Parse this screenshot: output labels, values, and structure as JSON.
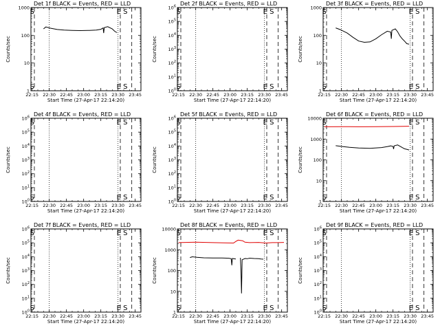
{
  "x_ticks": [
    "22:15",
    "22:30",
    "22:45",
    "23:00",
    "23:15",
    "23:30",
    "23:45"
  ],
  "x_tick_values": [
    0,
    15,
    30,
    45,
    60,
    75,
    90
  ],
  "xlabel": "Start Time (27-Apr-17 22:14:20)",
  "ylabel": "Counts/sec",
  "legend_markers": {
    "start": "S",
    "end": "E",
    "end_start": "E S"
  },
  "series_colors": {
    "Events": "#000000",
    "LLD": "#e00000"
  },
  "chart_data": [
    {
      "type": "line",
      "title": "Det 1f BLACK = Events, RED = LLD",
      "xlim": [
        -1,
        95
      ],
      "ylog": true,
      "ylim": [
        1,
        1000
      ],
      "y_ticks": [
        {
          "v": 1,
          "l": "1"
        },
        {
          "v": 10,
          "l": "10"
        },
        {
          "v": 100,
          "l": "100"
        },
        {
          "v": 1000,
          "l": "1000"
        }
      ],
      "markers": {
        "left": "S",
        "right": "E S"
      },
      "vlines": {
        "dotted": [
          15,
          75
        ],
        "dashed": [
          2,
          77,
          87
        ]
      },
      "series": [
        {
          "name": "Events",
          "color": "#000000",
          "segments": [
            [
              [
                10,
                170
              ],
              [
                12,
                200
              ],
              [
                16,
                180
              ],
              [
                22,
                162
              ],
              [
                28,
                155
              ],
              [
                35,
                150
              ],
              [
                42,
                148
              ],
              [
                50,
                150
              ],
              [
                56,
                155
              ],
              [
                60,
                165
              ],
              [
                62,
                185
              ],
              [
                62.5,
                120
              ],
              [
                63,
                190
              ],
              [
                66,
                205
              ],
              [
                70,
                170
              ],
              [
                72,
                140
              ],
              [
                74,
                125
              ]
            ]
          ]
        }
      ]
    },
    {
      "type": "line",
      "title": "Det 2f BLACK = Events, RED = LLD",
      "xlim": [
        -1,
        95
      ],
      "ylog": true,
      "ylim": [
        1,
        1000000
      ],
      "y_ticks": [
        {
          "v": 1,
          "l": "10^0"
        },
        {
          "v": 10,
          "l": "10^1"
        },
        {
          "v": 100,
          "l": "10^2"
        },
        {
          "v": 1000,
          "l": "10^3"
        },
        {
          "v": 10000,
          "l": "10^4"
        },
        {
          "v": 100000,
          "l": "10^5"
        },
        {
          "v": 1000000,
          "l": "10^6"
        }
      ],
      "markers": {
        "left": "S",
        "right": "E S"
      },
      "vlines": {
        "dotted": [
          15,
          75
        ],
        "dashed": [
          2,
          77,
          87
        ]
      },
      "series": []
    },
    {
      "type": "line",
      "title": "Det 3f BLACK = Events, RED = LLD",
      "xlim": [
        -1,
        95
      ],
      "ylog": true,
      "ylim": [
        1,
        1000
      ],
      "y_ticks": [
        {
          "v": 1,
          "l": "1"
        },
        {
          "v": 10,
          "l": "10"
        },
        {
          "v": 100,
          "l": "100"
        },
        {
          "v": 1000,
          "l": "1000"
        }
      ],
      "markers": {
        "left": "S",
        "right": "E S"
      },
      "vlines": {
        "dotted": [
          15,
          75
        ],
        "dashed": [
          2,
          77,
          87
        ]
      },
      "series": [
        {
          "name": "Events",
          "color": "#000000",
          "segments": [
            [
              [
                10,
                185
              ],
              [
                14,
                160
              ],
              [
                20,
                120
              ],
              [
                25,
                85
              ],
              [
                30,
                62
              ],
              [
                35,
                56
              ],
              [
                40,
                58
              ],
              [
                45,
                75
              ],
              [
                50,
                105
              ],
              [
                55,
                140
              ],
              [
                58,
                130
              ],
              [
                58.5,
                75
              ],
              [
                59,
                150
              ],
              [
                62,
                170
              ],
              [
                64,
                135
              ],
              [
                66,
                95
              ],
              [
                68,
                75
              ],
              [
                70,
                62
              ],
              [
                72,
                50
              ],
              [
                74,
                48
              ]
            ]
          ]
        }
      ]
    },
    {
      "type": "line",
      "title": "Det 4f BLACK = Events, RED = LLD",
      "xlim": [
        -1,
        95
      ],
      "ylog": true,
      "ylim": [
        1,
        1000000
      ],
      "y_ticks": [
        {
          "v": 1,
          "l": "10^0"
        },
        {
          "v": 10,
          "l": "10^1"
        },
        {
          "v": 100,
          "l": "10^2"
        },
        {
          "v": 1000,
          "l": "10^3"
        },
        {
          "v": 10000,
          "l": "10^4"
        },
        {
          "v": 100000,
          "l": "10^5"
        },
        {
          "v": 1000000,
          "l": "10^6"
        }
      ],
      "markers": {
        "left": "S",
        "right": "E S"
      },
      "vlines": {
        "dotted": [
          15,
          75
        ],
        "dashed": [
          2,
          77,
          87
        ]
      },
      "series": []
    },
    {
      "type": "line",
      "title": "Det 5f BLACK = Events, RED = LLD",
      "xlim": [
        -1,
        95
      ],
      "ylog": true,
      "ylim": [
        1,
        1000000
      ],
      "y_ticks": [
        {
          "v": 1,
          "l": "10^0"
        },
        {
          "v": 10,
          "l": "10^1"
        },
        {
          "v": 100,
          "l": "10^2"
        },
        {
          "v": 1000,
          "l": "10^3"
        },
        {
          "v": 10000,
          "l": "10^4"
        },
        {
          "v": 100000,
          "l": "10^5"
        },
        {
          "v": 1000000,
          "l": "10^6"
        }
      ],
      "markers": {
        "left": "S",
        "right": "E S"
      },
      "vlines": {
        "dotted": [
          15,
          75
        ],
        "dashed": [
          2,
          77,
          87
        ]
      },
      "series": []
    },
    {
      "type": "line",
      "title": "Det 6f BLACK = Events, RED = LLD",
      "xlim": [
        -1,
        95
      ],
      "ylog": true,
      "ylim": [
        1,
        10000
      ],
      "y_ticks": [
        {
          "v": 1,
          "l": "1"
        },
        {
          "v": 10,
          "l": "10"
        },
        {
          "v": 100,
          "l": "100"
        },
        {
          "v": 1000,
          "l": "1000"
        },
        {
          "v": 10000,
          "l": "10000"
        }
      ],
      "markers": {
        "left": "S",
        "right": "E S"
      },
      "vlines": {
        "dotted": [
          15,
          75
        ],
        "dashed": [
          2,
          77,
          87
        ]
      },
      "series": [
        {
          "name": "LLD",
          "color": "#e00000",
          "segments": [
            [
              [
                0,
                3900
              ],
              [
                15,
                3950
              ],
              [
                30,
                3900
              ],
              [
                45,
                3950
              ],
              [
                60,
                4000
              ],
              [
                70,
                4100
              ],
              [
                74,
                4150
              ]
            ]
          ]
        },
        {
          "name": "Events",
          "color": "#000000",
          "segments": [
            [
              [
                10,
                480
              ],
              [
                15,
                440
              ],
              [
                22,
                400
              ],
              [
                30,
                370
              ],
              [
                40,
                360
              ],
              [
                50,
                390
              ],
              [
                55,
                430
              ],
              [
                58,
                470
              ],
              [
                60,
                440
              ],
              [
                60.5,
                330
              ],
              [
                61,
                470
              ],
              [
                64,
                520
              ],
              [
                67,
                420
              ],
              [
                70,
                340
              ],
              [
                73,
                310
              ],
              [
                74,
                300
              ]
            ]
          ]
        }
      ]
    },
    {
      "type": "line",
      "title": "Det 7f BLACK = Events, RED = LLD",
      "xlim": [
        -1,
        95
      ],
      "ylog": true,
      "ylim": [
        1,
        1000000
      ],
      "y_ticks": [
        {
          "v": 1,
          "l": "10^0"
        },
        {
          "v": 10,
          "l": "10^1"
        },
        {
          "v": 100,
          "l": "10^2"
        },
        {
          "v": 1000,
          "l": "10^3"
        },
        {
          "v": 10000,
          "l": "10^4"
        },
        {
          "v": 100000,
          "l": "10^5"
        },
        {
          "v": 1000000,
          "l": "10^6"
        }
      ],
      "markers": {
        "left": "S",
        "right": "E S"
      },
      "vlines": {
        "dotted": [
          15,
          75
        ],
        "dashed": [
          2,
          77,
          87
        ]
      },
      "series": []
    },
    {
      "type": "line",
      "title": "Det 8f BLACK = Events, RED = LLD",
      "xlim": [
        -1,
        95
      ],
      "ylog": true,
      "ylim": [
        1,
        10000
      ],
      "y_ticks": [
        {
          "v": 1,
          "l": "1"
        },
        {
          "v": 10,
          "l": "10"
        },
        {
          "v": 100,
          "l": "100"
        },
        {
          "v": 1000,
          "l": "1000"
        },
        {
          "v": 10000,
          "l": "10000"
        }
      ],
      "markers": {
        "left": "S",
        "right": "E S"
      },
      "vlines": {
        "dotted": [
          15,
          75
        ],
        "dashed": [
          2,
          77,
          87
        ]
      },
      "series": [
        {
          "name": "LLD",
          "color": "#e00000",
          "segments": [
            [
              [
                0,
                2200
              ],
              [
                15,
                2300
              ],
              [
                30,
                2200
              ],
              [
                40,
                2150
              ],
              [
                48,
                2100
              ],
              [
                50,
                2500
              ],
              [
                52,
                2900
              ],
              [
                56,
                2700
              ],
              [
                58,
                2300
              ],
              [
                62,
                2200
              ],
              [
                70,
                2250
              ],
              [
                76,
                2100
              ],
              [
                82,
                2200
              ],
              [
                87,
                2200
              ],
              [
                92,
                2250
              ]
            ]
          ]
        },
        {
          "name": "Events",
          "color": "#000000",
          "segments": [
            [
              [
                10,
                420
              ],
              [
                12,
                460
              ],
              [
                16,
                430
              ],
              [
                22,
                410
              ],
              [
                30,
                400
              ],
              [
                38,
                400
              ],
              [
                44,
                390
              ],
              [
                46,
                370
              ],
              [
                46.5,
                180
              ],
              [
                47,
                380
              ],
              [
                50,
                360
              ]
            ],
            [
              [
                54,
                410
              ],
              [
                54.5,
                100
              ],
              [
                55,
                8
              ],
              [
                55.5,
                330
              ],
              [
                58,
                380
              ],
              [
                60,
                370
              ],
              [
                62,
                395
              ],
              [
                66,
                380
              ],
              [
                70,
                370
              ],
              [
                72,
                360
              ],
              [
                74,
                350
              ]
            ]
          ]
        }
      ]
    },
    {
      "type": "line",
      "title": "Det 9f BLACK = Events, RED = LLD",
      "xlim": [
        -1,
        95
      ],
      "ylog": true,
      "ylim": [
        1,
        1000000
      ],
      "y_ticks": [
        {
          "v": 1,
          "l": "10^0"
        },
        {
          "v": 10,
          "l": "10^1"
        },
        {
          "v": 100,
          "l": "10^2"
        },
        {
          "v": 1000,
          "l": "10^3"
        },
        {
          "v": 10000,
          "l": "10^4"
        },
        {
          "v": 100000,
          "l": "10^5"
        },
        {
          "v": 1000000,
          "l": "10^6"
        }
      ],
      "markers": {
        "left": "S",
        "right": "E S"
      },
      "vlines": {
        "dotted": [
          15,
          75
        ],
        "dashed": [
          2,
          77,
          87
        ]
      },
      "series": []
    }
  ]
}
